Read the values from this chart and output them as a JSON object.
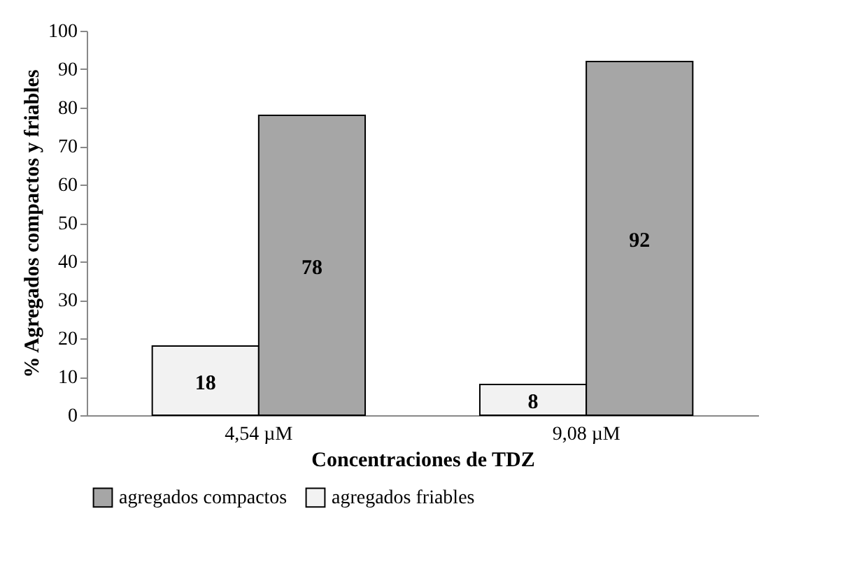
{
  "chart_data": {
    "type": "bar",
    "xlabel": "Concentraciones de TDZ",
    "ylabel": "% Agregados compactos y friables",
    "categories": [
      "4,54 µM",
      "9,08 µM"
    ],
    "series": [
      {
        "name": "agregados friables",
        "color": "#f2f2f2",
        "values": [
          18,
          8
        ]
      },
      {
        "name": "agregados compactos",
        "color": "#a6a6a6",
        "values": [
          78,
          92
        ]
      }
    ],
    "ylim": [
      0,
      100
    ],
    "yticks": [
      0,
      10,
      20,
      30,
      40,
      50,
      60,
      70,
      80,
      90,
      100
    ],
    "grid": false,
    "legend": "bottom",
    "data_labels": true
  }
}
